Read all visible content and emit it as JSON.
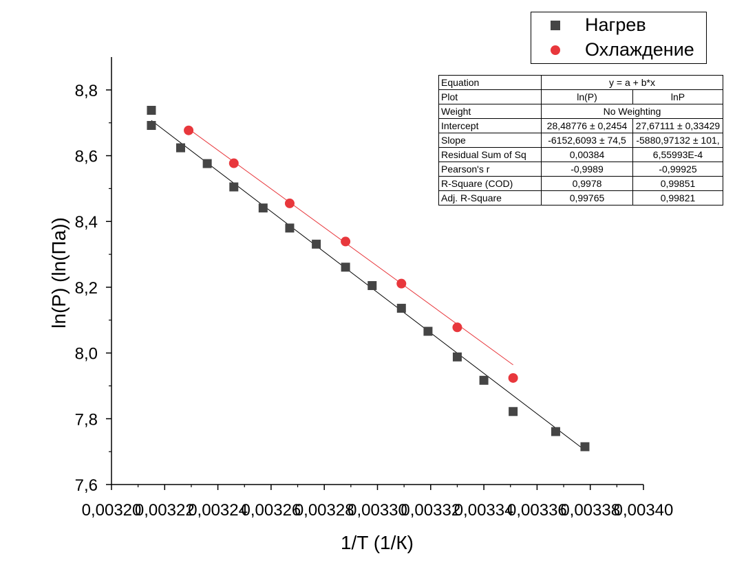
{
  "chart_data": {
    "type": "scatter",
    "title": "",
    "xlabel": "1/T (1/К)",
    "ylabel": "ln(P) (ln(Па))",
    "xlim": [
      0.0032,
      0.0034
    ],
    "ylim": [
      7.6,
      8.9
    ],
    "x_ticks": [
      "0,00320",
      "0,00322",
      "0,00324",
      "0,00326",
      "0,00328",
      "0,00330",
      "0,00332",
      "0,00334",
      "0,00336",
      "0,00338",
      "0,00340"
    ],
    "x_tick_values": [
      0.0032,
      0.00322,
      0.00324,
      0.00326,
      0.00328,
      0.0033,
      0.00332,
      0.00334,
      0.00336,
      0.00338,
      0.0034
    ],
    "y_ticks": [
      "7,6",
      "7,8",
      "8,0",
      "8,2",
      "8,4",
      "8,6",
      "8,8"
    ],
    "y_tick_values": [
      7.6,
      7.8,
      8.0,
      8.2,
      8.4,
      8.6,
      8.8
    ],
    "legend_position": "top-right",
    "series": [
      {
        "name": "Нагрев",
        "marker": "square",
        "color": "#454545",
        "fit_color": "#000000",
        "fit": {
          "a": 28.48776,
          "b": -6152.6093,
          "x_range": [
            0.003215,
            0.003378
          ]
        },
        "x": [
          0.003215,
          0.003215,
          0.003226,
          0.003236,
          0.003246,
          0.003257,
          0.003267,
          0.003277,
          0.003288,
          0.003298,
          0.003309,
          0.003319,
          0.00333,
          0.00334,
          0.003351,
          0.003367,
          0.003378
        ],
        "y": [
          8.738,
          8.692,
          8.624,
          8.576,
          8.505,
          8.441,
          8.38,
          8.331,
          8.261,
          8.205,
          8.136,
          8.066,
          7.988,
          7.917,
          7.822,
          7.761,
          7.715
        ]
      },
      {
        "name": "Охлаждение",
        "marker": "circle",
        "color": "#e8373c",
        "fit_color": "#e8373c",
        "fit": {
          "a": 27.67111,
          "b": -5880.97132,
          "x_range": [
            0.003229,
            0.003351
          ]
        },
        "x": [
          0.003229,
          0.003246,
          0.003267,
          0.003288,
          0.003309,
          0.00333,
          0.003351
        ],
        "y": [
          8.677,
          8.577,
          8.455,
          8.339,
          8.211,
          8.078,
          7.924
        ]
      }
    ]
  },
  "stats_table": {
    "rows": [
      {
        "label": "Equation",
        "span": "y = a + b*x"
      },
      {
        "label": "Plot",
        "c1": "ln(P)",
        "c2": "lnP"
      },
      {
        "label": "Weight",
        "span": "No Weighting"
      },
      {
        "label": "Intercept",
        "c1": "28,48776 ± 0,2454",
        "c2": "27,67111 ± 0,33429"
      },
      {
        "label": "Slope",
        "c1": "-6152,6093 ± 74,5",
        "c2": "-5880,97132 ± 101,"
      },
      {
        "label": "Residual Sum of Sq",
        "c1": "0,00384",
        "c2": "6,55993E-4"
      },
      {
        "label": "Pearson's r",
        "c1": "-0,9989",
        "c2": "-0,99925"
      },
      {
        "label": "R-Square (COD)",
        "c1": "0,9978",
        "c2": "0,99851"
      },
      {
        "label": "Adj. R-Square",
        "c1": "0,99765",
        "c2": "0,99821"
      }
    ]
  }
}
